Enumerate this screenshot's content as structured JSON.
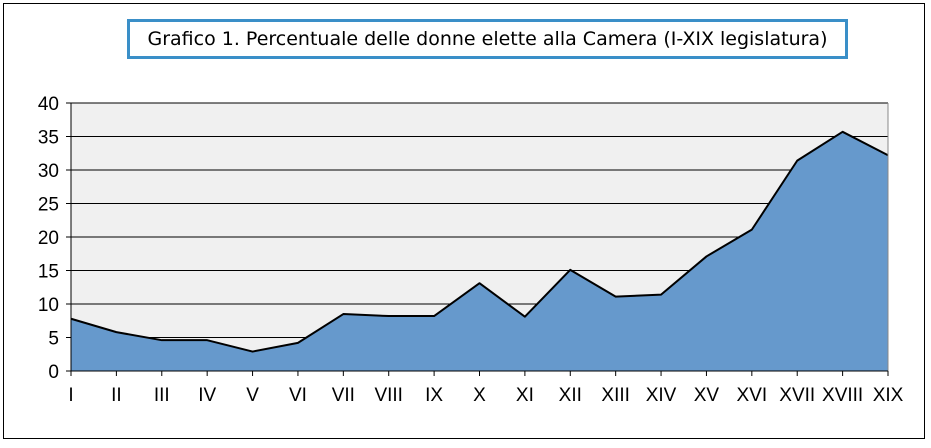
{
  "chart_data": {
    "type": "area",
    "title": "Grafico 1. Percentuale delle donne elette alla Camera (I-XIX legislatura)",
    "categories": [
      "I",
      "II",
      "III",
      "IV",
      "V",
      "VI",
      "VII",
      "VIII",
      "IX",
      "X",
      "XI",
      "XII",
      "XIII",
      "XIV",
      "XV",
      "XVI",
      "XVII",
      "XVIII",
      "XIX"
    ],
    "values": [
      7.8,
      5.8,
      4.6,
      4.6,
      2.9,
      4.2,
      8.5,
      8.2,
      8.2,
      13.1,
      8.1,
      15.1,
      11.1,
      11.4,
      17.1,
      21.1,
      31.4,
      35.7,
      32.2
    ],
    "ylim": [
      0,
      40
    ],
    "yticks": [
      0,
      5,
      10,
      15,
      20,
      25,
      30,
      35,
      40
    ],
    "grid": true,
    "colors": {
      "fill": "#6699cc",
      "line": "#000000",
      "plot_bg": "#f0f0f0",
      "title_border": "#3a8fc8"
    }
  }
}
